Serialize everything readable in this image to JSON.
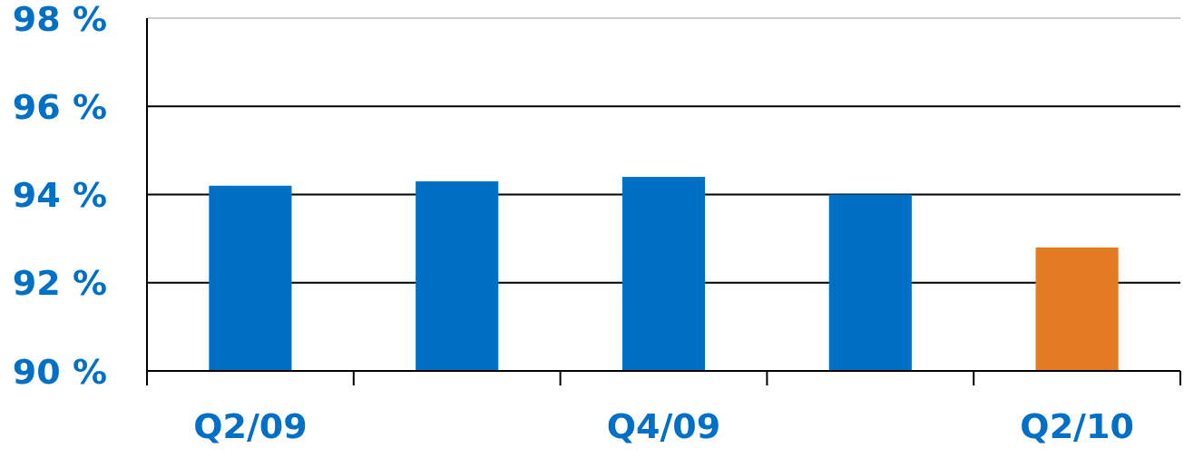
{
  "chart_data": {
    "type": "bar",
    "categories": [
      "Q2/09",
      null,
      "Q4/09",
      null,
      "Q2/10"
    ],
    "values": [
      94.2,
      94.3,
      94.4,
      94.0,
      92.8
    ],
    "colors": [
      "#0070c6",
      "#0070c6",
      "#0070c6",
      "#0070c6",
      "#e37b22"
    ],
    "ylim": [
      90,
      98
    ],
    "yticks": [
      {
        "value": 90,
        "label": "90 %"
      },
      {
        "value": 92,
        "label": "92 %"
      },
      {
        "value": 94,
        "label": "94 %"
      },
      {
        "value": 96,
        "label": "96 %"
      },
      {
        "value": 98,
        "label": "98 %"
      }
    ],
    "grid": "y"
  }
}
